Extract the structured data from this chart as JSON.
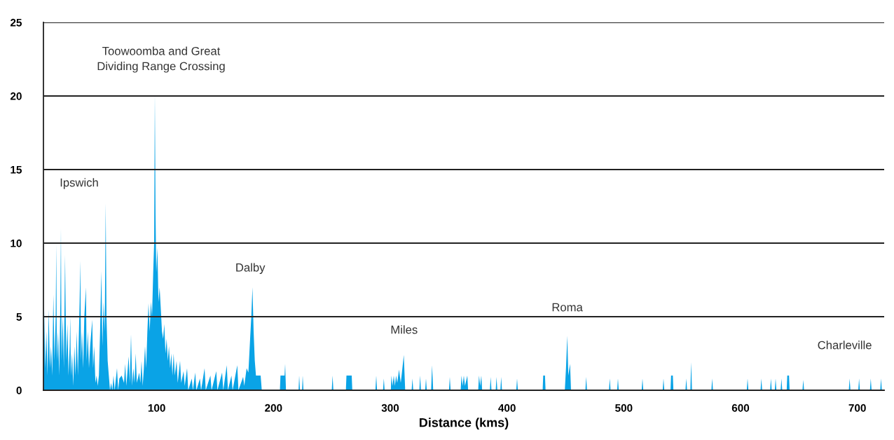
{
  "chart_data": {
    "type": "area",
    "xlabel": "Distance (kms)",
    "xlim": [
      3,
      723
    ],
    "ylim": [
      0,
      25
    ],
    "xticks": [
      100,
      200,
      300,
      400,
      500,
      600,
      700
    ],
    "yticks": [
      0,
      5,
      10,
      15,
      20,
      25
    ],
    "grid": "y",
    "series": [
      {
        "color": "#0aa3e6",
        "x": [
          3,
          3.5,
          4.5,
          5.5,
          6.5,
          7.5,
          8.5,
          9.5,
          10.5,
          11.5,
          12.5,
          13.5,
          14,
          14.5,
          15.5,
          16.5,
          17.5,
          18,
          18.5,
          19.5,
          20.5,
          21.5,
          22.5,
          23.5,
          24.5,
          25.5,
          26,
          26.5,
          27.5,
          28.5,
          29.5,
          30.5,
          31.5,
          32.5,
          34,
          34.6,
          35.2,
          36,
          37,
          38,
          39.4,
          40,
          41,
          42,
          43,
          44.8,
          45.5,
          46.5,
          47.5,
          48.5,
          49.5,
          50.5,
          51.5,
          52.6,
          53.5,
          54.5,
          55.5,
          56.3,
          57,
          58,
          59,
          60,
          61,
          62,
          63,
          64,
          66,
          67,
          68,
          70,
          72,
          73,
          74,
          76,
          77,
          78,
          79,
          80,
          81,
          82,
          83,
          85,
          86,
          87,
          88,
          89,
          90,
          91,
          92,
          93,
          94,
          95,
          96,
          97,
          97.8,
          98.4,
          99,
          99.6,
          100.6,
          101.5,
          102.5,
          103.6,
          104.5,
          105.5,
          106.5,
          107.5,
          108.5,
          109.5,
          110.5,
          111.5,
          112.5,
          113.5,
          114.5,
          115.5,
          117,
          118,
          120,
          121,
          123,
          124,
          126,
          127,
          130,
          131,
          133,
          134,
          137,
          138,
          141,
          142,
          146,
          147,
          151,
          152,
          156,
          157,
          160,
          161,
          164,
          165,
          169,
          170,
          174,
          175,
          177,
          178.5,
          180,
          181,
          182,
          183,
          184,
          185,
          189,
          190,
          205.5,
          206,
          209.5,
          210,
          210.7,
          221.5,
          222,
          222.7,
          224.5,
          225,
          225.7,
          249.9,
          250.6,
          251.3,
          262,
          262.5,
          267,
          267.5,
          287.3,
          288,
          288.7,
          293.8,
          294.5,
          295.2,
          300.5,
          301,
          302,
          303,
          304,
          305,
          306,
          307.5,
          309,
          310,
          311.6,
          312.8,
          318.3,
          319,
          319.7,
          324.9,
          325.6,
          326.3,
          329.9,
          330.6,
          331.3,
          335,
          335.8,
          336.8,
          350.3,
          351,
          351.7,
          360.3,
          361,
          362,
          363,
          364,
          366,
          366.7,
          375.3,
          376,
          377,
          378,
          378.7,
          385.3,
          386,
          386.7,
          390.3,
          391,
          391.7,
          394.3,
          395,
          395.7,
          407.9,
          408.6,
          409.3,
          430.5,
          431,
          432.5,
          433,
          449.5,
          450.5,
          451.6,
          452.5,
          454,
          454.8,
          467.1,
          467.8,
          468.5,
          487.3,
          488,
          488.7,
          494.3,
          495,
          495.7,
          515.3,
          516,
          516.7,
          533.3,
          534,
          534.7,
          540,
          540.5,
          542,
          542.5,
          552.8,
          553.5,
          554.2,
          557,
          557.7,
          558.4,
          575,
          575.7,
          576.4,
          605.3,
          606,
          606.7,
          617.1,
          617.8,
          618.5,
          625.3,
          626,
          626.7,
          629.3,
          630,
          630.7,
          634.3,
          635,
          635.7,
          639.5,
          640,
          641.5,
          642,
          653,
          653.7,
          654.4,
          692.7,
          693.4,
          694.1,
          700.8,
          701.5,
          702.2,
          710.8,
          711.5,
          712.2,
          719.6,
          720.3,
          721
        ],
        "values": [
          3,
          5.9,
          1.5,
          4,
          1,
          5.5,
          1.5,
          3,
          1,
          6.5,
          2,
          5,
          9.9,
          2,
          4,
          1,
          6,
          11,
          2,
          5,
          1.5,
          9.2,
          2,
          4.5,
          1,
          3,
          5,
          1,
          2.5,
          0.3,
          3,
          1,
          4,
          1,
          6,
          8.8,
          2,
          4,
          1.5,
          5,
          7,
          2,
          4,
          1.5,
          3,
          4.8,
          1.5,
          3,
          0.5,
          1,
          0.3,
          1,
          4,
          8.1,
          3,
          6,
          4,
          12.7,
          5,
          2,
          1,
          0,
          0.5,
          0,
          1,
          0,
          1.5,
          0,
          0.8,
          1,
          0.5,
          1.8,
          0.3,
          2.3,
          0.5,
          3.8,
          0.3,
          1.5,
          0.5,
          2.5,
          0.5,
          1.2,
          0.5,
          2,
          0.3,
          1.5,
          3,
          1.5,
          4,
          5.9,
          4,
          6,
          5,
          8,
          10,
          20.1,
          12,
          8,
          9.7,
          6,
          7,
          5.4,
          4,
          3.5,
          4.5,
          2.5,
          3.5,
          2,
          3,
          1.5,
          2.5,
          1,
          2.5,
          1,
          2,
          0.5,
          2,
          0.5,
          1.3,
          0.3,
          1.5,
          0,
          0.8,
          0,
          1.2,
          0,
          0.8,
          0,
          1.5,
          0,
          1,
          0,
          1.3,
          0,
          1.2,
          0,
          1.7,
          0,
          1,
          0,
          1.7,
          0,
          0.9,
          0.3,
          1.5,
          1.2,
          3.5,
          5,
          7,
          4,
          2,
          1,
          1,
          0,
          0,
          1,
          1,
          1.8,
          0,
          0,
          1,
          0,
          0,
          1,
          0,
          0,
          1,
          0,
          0,
          1,
          1,
          0,
          0,
          1,
          0,
          0,
          0.8,
          0,
          0,
          1,
          0.3,
          1,
          0.3,
          1,
          0.5,
          1.4,
          0.5,
          1.2,
          2.4,
          0,
          0,
          0.8,
          0,
          0,
          1,
          0,
          0,
          0.8,
          0,
          0,
          1.7,
          0,
          0,
          0.9,
          0,
          0,
          1,
          0.3,
          1,
          0.3,
          1,
          0,
          0,
          1,
          0.3,
          1,
          0,
          0,
          0.9,
          0,
          0,
          0.9,
          0,
          0,
          0.9,
          0,
          0,
          0.8,
          0,
          0,
          1,
          1,
          0,
          0,
          1.5,
          3.7,
          1,
          1.8,
          0,
          0,
          0.9,
          0,
          0,
          0.8,
          0,
          0,
          0.8,
          0,
          0,
          0.8,
          0,
          0,
          0.8,
          0,
          0,
          1,
          1,
          0,
          0,
          0.8,
          0,
          0,
          1.9,
          0,
          0,
          0.8,
          0,
          0,
          0.8,
          0,
          0,
          0.8,
          0,
          0,
          0.8,
          0,
          0,
          0.8,
          0,
          0,
          0.8,
          0,
          0,
          1,
          1,
          0,
          0,
          0.7,
          0,
          0,
          0.8,
          0,
          0,
          0.8,
          0,
          0,
          0.8,
          0,
          0,
          0.8,
          0
        ]
      }
    ],
    "annotations": [
      "Toowoomba and Great\nDividing Range Crossing",
      "Ipswich",
      "Dalby",
      "Miles",
      "Roma",
      "Charleville"
    ]
  }
}
